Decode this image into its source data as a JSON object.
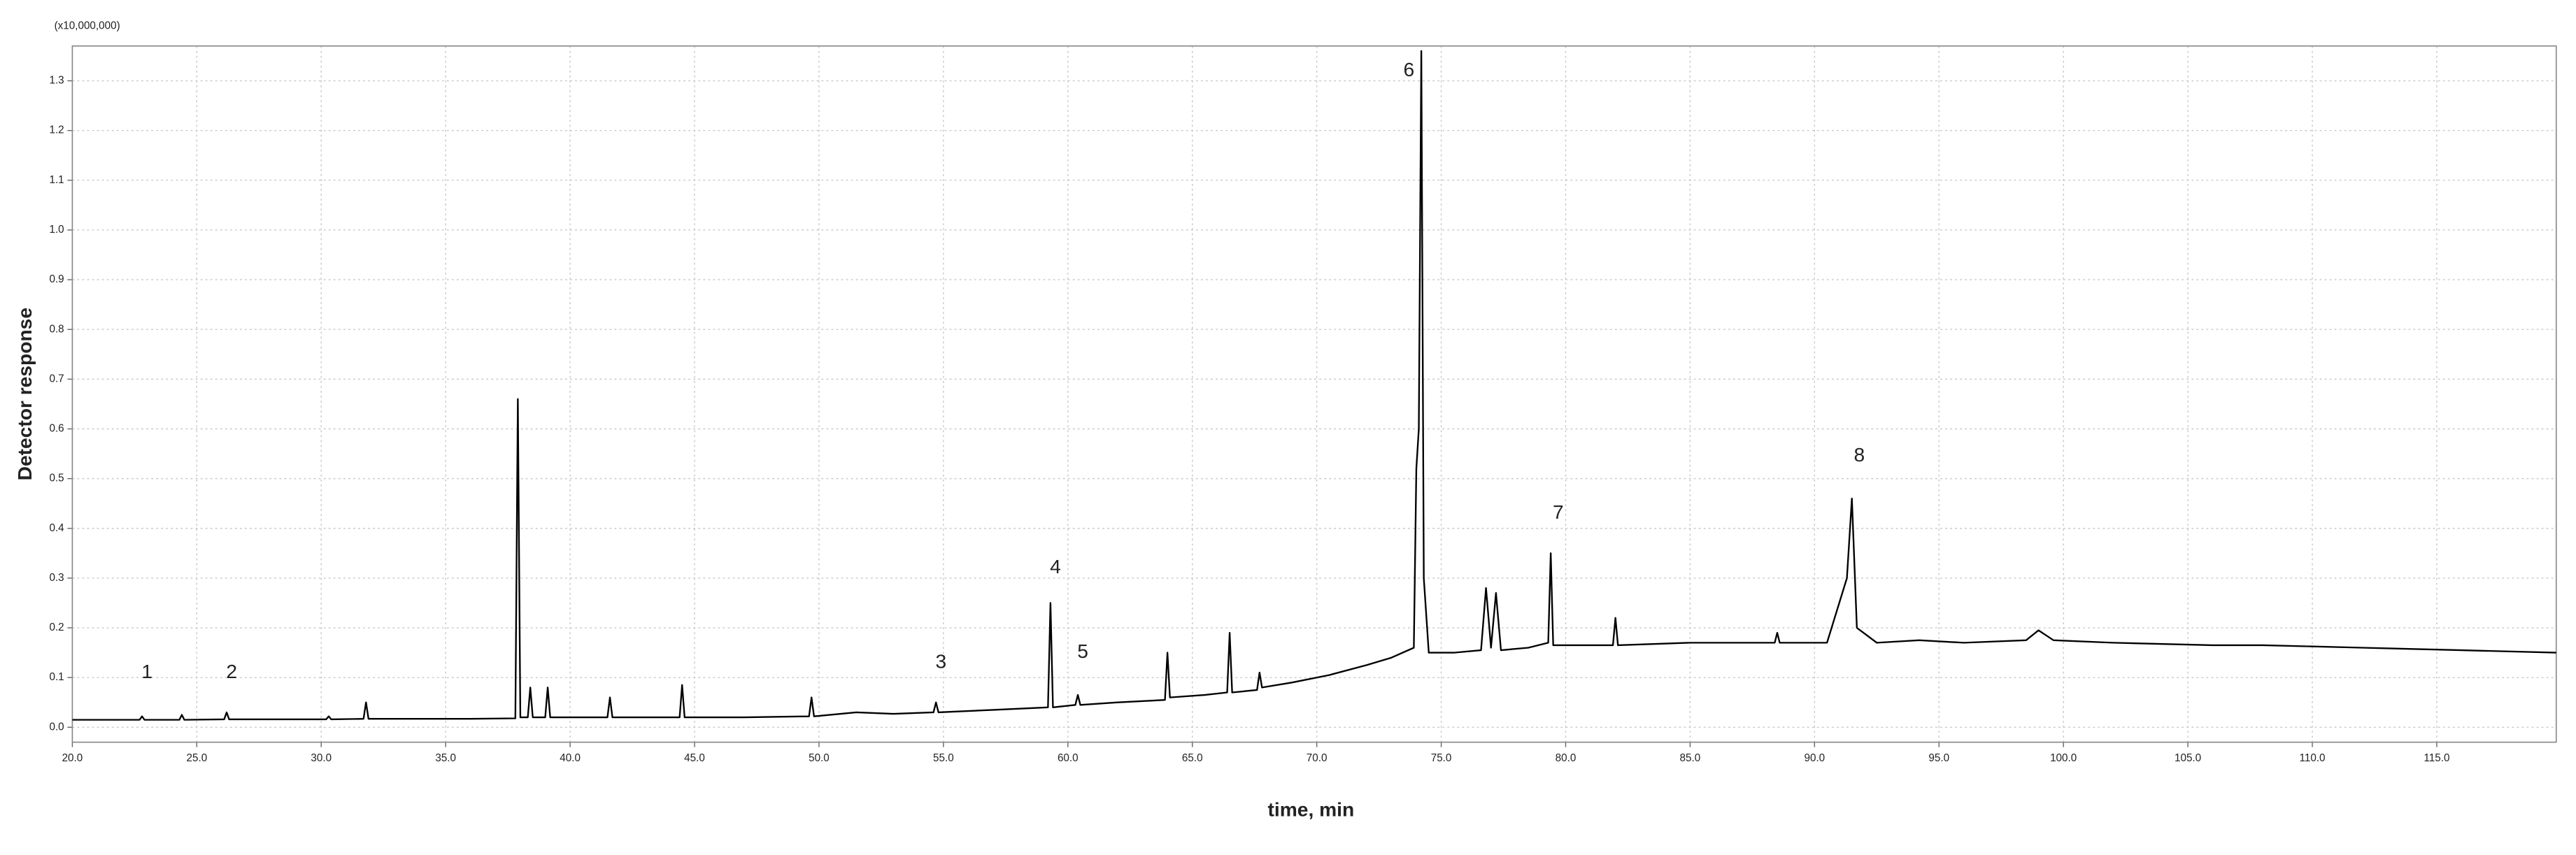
{
  "chart_data": {
    "type": "line",
    "multiplier_label": "(x10,000,000)",
    "xlabel": "time, min",
    "ylabel": "Detector response",
    "color": "#000000",
    "grid": true,
    "xlim": [
      20,
      119.8
    ],
    "ylim": [
      -0.03,
      1.37
    ],
    "xticks": [
      {
        "value": 20,
        "label": "20.0"
      },
      {
        "value": 25,
        "label": "25.0"
      },
      {
        "value": 30,
        "label": "30.0"
      },
      {
        "value": 35,
        "label": "35.0"
      },
      {
        "value": 40,
        "label": "40.0"
      },
      {
        "value": 45,
        "label": "45.0"
      },
      {
        "value": 50,
        "label": "50.0"
      },
      {
        "value": 55,
        "label": "55.0"
      },
      {
        "value": 60,
        "label": "60.0"
      },
      {
        "value": 65,
        "label": "65.0"
      },
      {
        "value": 70,
        "label": "70.0"
      },
      {
        "value": 75,
        "label": "75.0"
      },
      {
        "value": 80,
        "label": "80.0"
      },
      {
        "value": 85,
        "label": "85.0"
      },
      {
        "value": 90,
        "label": "90.0"
      },
      {
        "value": 95,
        "label": "95.0"
      },
      {
        "value": 100,
        "label": "100.0"
      },
      {
        "value": 105,
        "label": "105.0"
      },
      {
        "value": 110,
        "label": "110.0"
      },
      {
        "value": 115,
        "label": "115.0"
      }
    ],
    "yticks": [
      {
        "value": 0,
        "label": "0.0"
      },
      0.1,
      0.2,
      0.3,
      0.4,
      0.5,
      0.6,
      0.7,
      0.8,
      0.9,
      {
        "value": 1,
        "label": "1.0"
      },
      1.1,
      1.2,
      1.3
    ],
    "x": [
      20,
      22.0,
      22.7,
      22.8,
      22.9,
      24.3,
      24.4,
      24.5,
      26.1,
      26.2,
      26.3,
      28,
      30.2,
      30.3,
      30.4,
      31.7,
      31.8,
      31.9,
      34,
      36,
      37.8,
      37.9,
      38.0,
      38.3,
      38.4,
      38.5,
      39.0,
      39.1,
      39.2,
      40.5,
      41.5,
      41.6,
      41.7,
      43.0,
      44.4,
      44.5,
      44.6,
      47,
      49.6,
      49.7,
      49.8,
      51.5,
      53,
      54.6,
      54.7,
      54.8,
      57,
      59.2,
      59.3,
      59.4,
      60.3,
      60.4,
      60.5,
      62,
      63.9,
      64.0,
      64.1,
      65.5,
      66.4,
      66.5,
      66.6,
      67.6,
      67.7,
      67.8,
      69,
      70.5,
      72,
      73,
      73.9,
      74.0,
      74.1,
      74.2,
      74.3,
      74.5,
      75.5,
      76.6,
      76.8,
      77.0,
      77.2,
      77.4,
      78.5,
      79.3,
      79.4,
      79.5,
      81,
      81.9,
      82.0,
      82.1,
      85,
      88.4,
      88.5,
      88.6,
      90.5,
      91.3,
      91.5,
      91.7,
      92.5,
      94.2,
      96,
      98.5,
      99.0,
      99.6,
      102,
      106,
      108,
      112,
      116,
      119.8
    ],
    "values": [
      0.015,
      0.015,
      0.015,
      0.022,
      0.015,
      0.015,
      0.025,
      0.015,
      0.016,
      0.03,
      0.016,
      0.016,
      0.016,
      0.022,
      0.016,
      0.017,
      0.05,
      0.017,
      0.017,
      0.017,
      0.018,
      0.66,
      0.02,
      0.02,
      0.08,
      0.02,
      0.02,
      0.08,
      0.02,
      0.02,
      0.02,
      0.06,
      0.02,
      0.02,
      0.02,
      0.085,
      0.02,
      0.02,
      0.022,
      0.06,
      0.022,
      0.03,
      0.027,
      0.03,
      0.05,
      0.03,
      0.035,
      0.04,
      0.25,
      0.04,
      0.045,
      0.065,
      0.045,
      0.05,
      0.055,
      0.15,
      0.06,
      0.065,
      0.07,
      0.19,
      0.07,
      0.075,
      0.11,
      0.08,
      0.09,
      0.105,
      0.125,
      0.14,
      0.16,
      0.52,
      0.6,
      1.36,
      0.3,
      0.15,
      0.15,
      0.155,
      0.28,
      0.16,
      0.27,
      0.155,
      0.16,
      0.17,
      0.35,
      0.165,
      0.165,
      0.165,
      0.22,
      0.165,
      0.17,
      0.17,
      0.19,
      0.17,
      0.17,
      0.3,
      0.46,
      0.2,
      0.17,
      0.175,
      0.17,
      0.175,
      0.195,
      0.175,
      0.17,
      0.165,
      0.165,
      0.16,
      0.155,
      0.15
    ],
    "annotations": [
      {
        "text": "1",
        "x": 23.0,
        "y": 0.109
      },
      {
        "text": "2",
        "x": 26.4,
        "y": 0.109
      },
      {
        "text": "3",
        "x": 54.9,
        "y": 0.13
      },
      {
        "text": "4",
        "x": 59.5,
        "y": 0.32
      },
      {
        "text": "5",
        "x": 60.6,
        "y": 0.15
      },
      {
        "text": "6",
        "x": 73.7,
        "y": 1.32
      },
      {
        "text": "7",
        "x": 79.7,
        "y": 0.43
      },
      {
        "text": "8",
        "x": 91.8,
        "y": 0.545
      }
    ]
  }
}
